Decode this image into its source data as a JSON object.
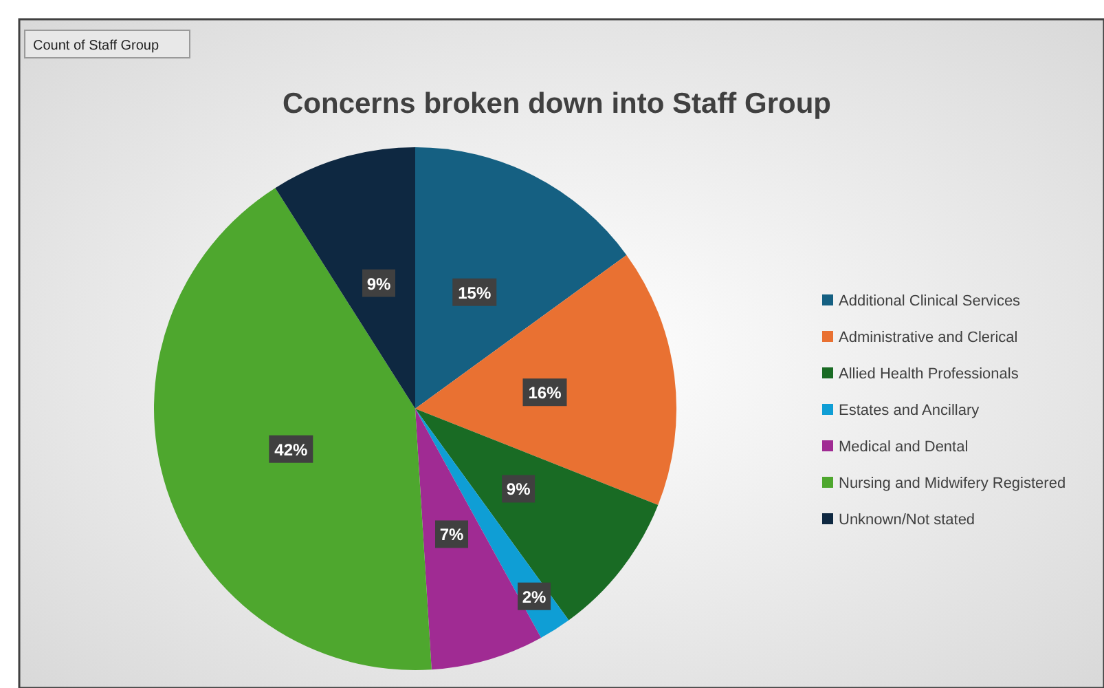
{
  "chart_data": {
    "type": "pie",
    "title": "Concerns broken down into Staff Group",
    "annotations": [
      "Count of Staff Group"
    ],
    "categories": [
      "Additional Clinical Services",
      "Administrative and Clerical",
      "Allied Health Professionals",
      "Estates and Ancillary",
      "Medical and Dental",
      "Nursing and Midwifery Registered",
      "Unknown/Not stated"
    ],
    "values": [
      15,
      16,
      9,
      2,
      7,
      42,
      9
    ],
    "colors": [
      "#156082",
      "#e97132",
      "#196b24",
      "#0f9ed5",
      "#a02b93",
      "#4ea72e",
      "#0e2841"
    ],
    "value_labels": [
      "15%",
      "16%",
      "9%",
      "2%",
      "7%",
      "42%",
      "9%"
    ],
    "legend": "right"
  }
}
